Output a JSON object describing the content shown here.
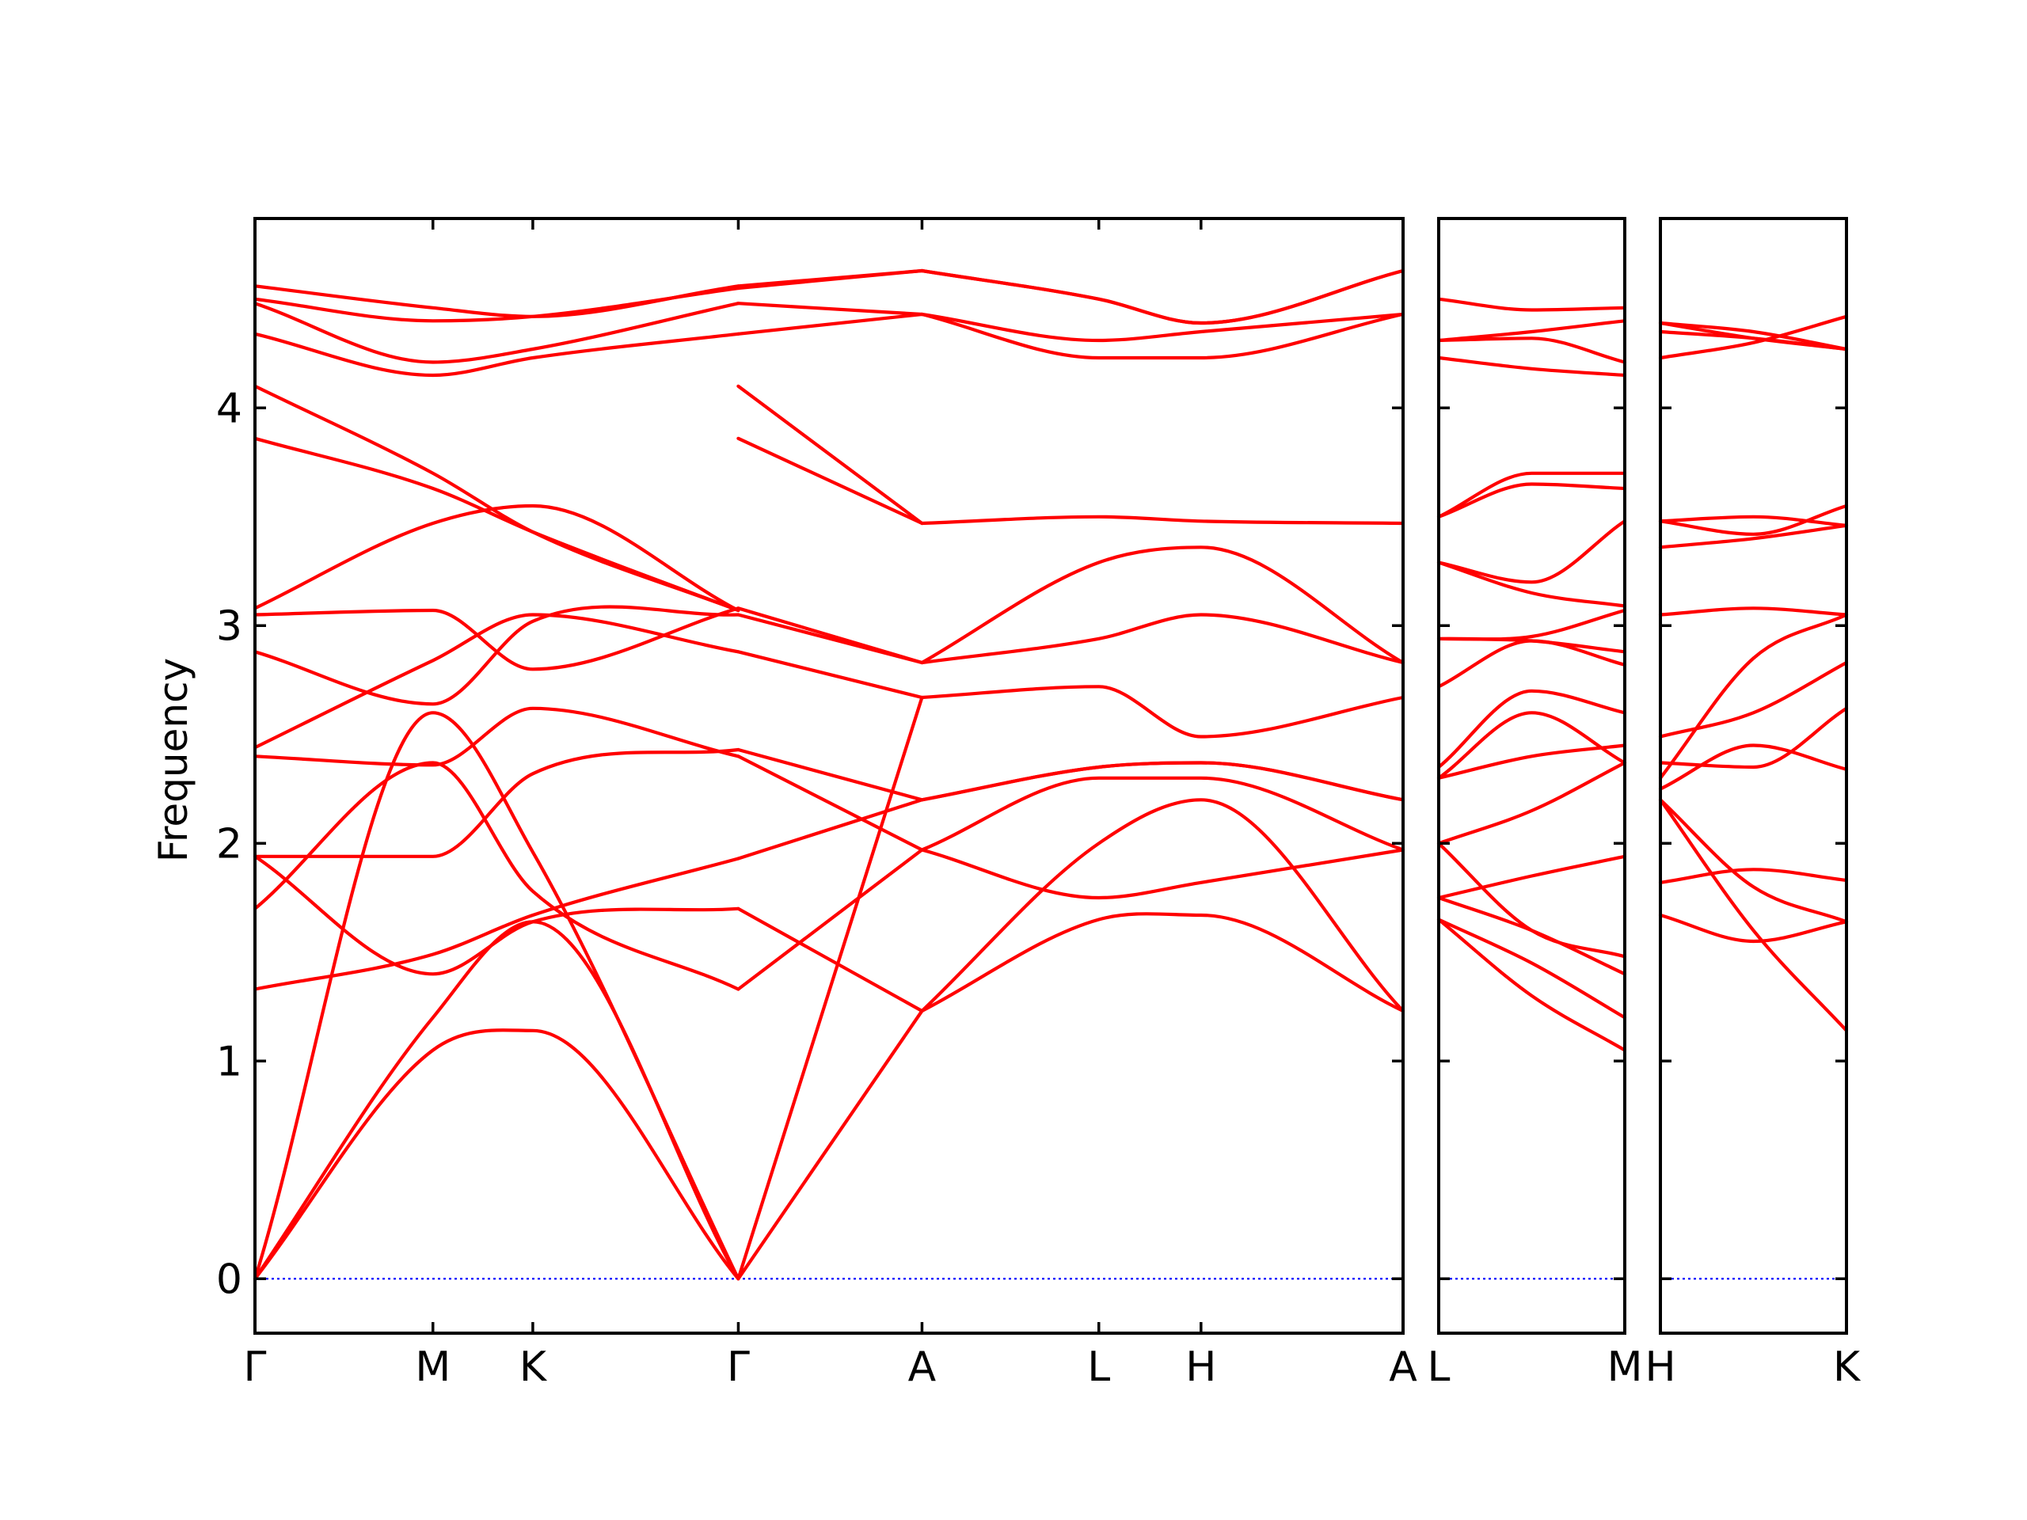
{
  "chart_data": {
    "type": "line",
    "ylabel": "Frequency",
    "xlabel": "",
    "title": "",
    "ylim": [
      -0.25,
      4.87
    ],
    "yticks": [
      0,
      1,
      2,
      3,
      4
    ],
    "grid": false,
    "colors": {
      "bands": "#ff0000",
      "zero_line": "#0000ff",
      "frame": "#000000"
    },
    "panels": [
      {
        "name": "main",
        "labels": [
          "Γ",
          "M",
          "K",
          "Γ",
          "A",
          "L",
          "H",
          "A"
        ],
        "label_x": [
          0,
          0.155,
          0.242,
          0.421,
          0.581,
          0.735,
          0.824,
          1.0
        ],
        "series": [
          {
            "x": [
              0,
              0.155,
              0.242,
              0.421
            ],
            "y": [
              0,
              1.05,
              1.14,
              0
            ]
          },
          {
            "x": [
              0,
              0.155,
              0.242,
              0.421
            ],
            "y": [
              0,
              1.2,
              1.64,
              0
            ]
          },
          {
            "x": [
              0,
              0.155,
              0.242,
              0.421
            ],
            "y": [
              0,
              2.6,
              1.96,
              0
            ]
          },
          {
            "x": [
              0,
              0.155,
              0.242,
              0.421
            ],
            "y": [
              1.33,
              1.49,
              1.67,
              1.93
            ]
          },
          {
            "x": [
              0,
              0.155,
              0.242,
              0.421
            ],
            "y": [
              1.7,
              2.37,
              1.78,
              1.33
            ]
          },
          {
            "x": [
              0,
              0.155,
              0.242,
              0.421
            ],
            "y": [
              1.94,
              1.4,
              1.64,
              1.7
            ]
          },
          {
            "x": [
              0,
              0.155,
              0.242,
              0.421
            ],
            "y": [
              1.94,
              1.94,
              2.32,
              2.43
            ]
          },
          {
            "x": [
              0,
              0.155,
              0.242,
              0.421
            ],
            "y": [
              2.4,
              2.36,
              2.62,
              2.4
            ]
          },
          {
            "x": [
              0,
              0.155,
              0.242,
              0.421
            ],
            "y": [
              2.44,
              2.84,
              3.05,
              2.88
            ]
          },
          {
            "x": [
              0,
              0.155,
              0.242,
              0.421
            ],
            "y": [
              2.88,
              2.64,
              3.02,
              3.05
            ]
          },
          {
            "x": [
              0,
              0.155,
              0.242,
              0.421
            ],
            "y": [
              3.05,
              3.07,
              2.8,
              3.08
            ]
          },
          {
            "x": [
              0,
              0.155,
              0.242,
              0.421
            ],
            "y": [
              3.08,
              3.47,
              3.55,
              3.07
            ]
          },
          {
            "x": [
              0,
              0.155,
              0.242,
              0.421
            ],
            "y": [
              3.86,
              3.63,
              3.43,
              3.07
            ]
          },
          {
            "x": [
              0,
              0.155,
              0.242,
              0.421
            ],
            "y": [
              4.1,
              3.7,
              3.43,
              3.07
            ]
          },
          {
            "x": [
              0,
              0.155,
              0.242,
              0.421
            ],
            "y": [
              4.34,
              4.15,
              4.23,
              4.34
            ]
          },
          {
            "x": [
              0,
              0.155,
              0.242,
              0.421
            ],
            "y": [
              4.48,
              4.21,
              4.27,
              4.48
            ]
          },
          {
            "x": [
              0,
              0.155,
              0.242,
              0.421
            ],
            "y": [
              4.5,
              4.4,
              4.42,
              4.55
            ]
          },
          {
            "x": [
              0,
              0.155,
              0.242,
              0.421
            ],
            "y": [
              4.56,
              4.46,
              4.42,
              4.56
            ]
          },
          {
            "x": [
              0.421,
              0.581
            ],
            "y": [
              0,
              1.23
            ]
          },
          {
            "x": [
              0.421,
              0.581
            ],
            "y": [
              0,
              2.67
            ]
          },
          {
            "x": [
              0.421,
              0.581
            ],
            "y": [
              1.33,
              1.97
            ]
          },
          {
            "x": [
              0.421,
              0.581
            ],
            "y": [
              1.7,
              1.23
            ]
          },
          {
            "x": [
              0.421,
              0.581
            ],
            "y": [
              1.93,
              2.2
            ]
          },
          {
            "x": [
              0.421,
              0.581
            ],
            "y": [
              2.4,
              1.97
            ]
          },
          {
            "x": [
              0.421,
              0.581
            ],
            "y": [
              2.43,
              2.2
            ]
          },
          {
            "x": [
              0.421,
              0.581
            ],
            "y": [
              2.88,
              2.67
            ]
          },
          {
            "x": [
              0.421,
              0.581
            ],
            "y": [
              3.05,
              2.83
            ]
          },
          {
            "x": [
              0.421,
              0.581
            ],
            "y": [
              3.08,
              2.83
            ]
          },
          {
            "x": [
              0.421,
              0.581
            ],
            "y": [
              3.86,
              3.47
            ]
          },
          {
            "x": [
              0.421,
              0.581
            ],
            "y": [
              4.1,
              3.47
            ]
          },
          {
            "x": [
              0.421,
              0.581
            ],
            "y": [
              4.34,
              4.43
            ]
          },
          {
            "x": [
              0.421,
              0.581
            ],
            "y": [
              4.48,
              4.43
            ]
          },
          {
            "x": [
              0.421,
              0.581
            ],
            "y": [
              4.55,
              4.63
            ]
          },
          {
            "x": [
              0.421,
              0.581
            ],
            "y": [
              4.56,
              4.63
            ]
          },
          {
            "x": [
              0.581,
              0.735,
              0.824,
              1.0
            ],
            "y": [
              1.23,
              1.65,
              1.67,
              1.23
            ]
          },
          {
            "x": [
              0.581,
              0.735,
              0.824,
              1.0
            ],
            "y": [
              1.23,
              2.0,
              2.2,
              1.23
            ]
          },
          {
            "x": [
              0.581,
              0.735,
              0.824,
              1.0
            ],
            "y": [
              1.97,
              1.75,
              1.82,
              1.97
            ]
          },
          {
            "x": [
              0.581,
              0.735,
              0.824,
              1.0
            ],
            "y": [
              1.97,
              2.3,
              2.3,
              1.97
            ]
          },
          {
            "x": [
              0.581,
              0.735,
              0.824,
              1.0
            ],
            "y": [
              2.2,
              2.35,
              2.37,
              2.2
            ]
          },
          {
            "x": [
              0.581,
              0.735,
              0.824,
              1.0
            ],
            "y": [
              2.2,
              2.35,
              2.37,
              2.2
            ]
          },
          {
            "x": [
              0.581,
              0.735,
              0.824,
              1.0
            ],
            "y": [
              2.67,
              2.72,
              2.49,
              2.67
            ]
          },
          {
            "x": [
              0.581,
              0.735,
              0.824,
              1.0
            ],
            "y": [
              2.83,
              2.94,
              3.05,
              2.83
            ]
          },
          {
            "x": [
              0.581,
              0.735,
              0.824,
              1.0
            ],
            "y": [
              2.83,
              3.29,
              3.36,
              2.83
            ]
          },
          {
            "x": [
              0.581,
              0.735,
              0.824,
              1.0
            ],
            "y": [
              3.47,
              3.5,
              3.48,
              3.47
            ]
          },
          {
            "x": [
              0.581,
              0.735,
              0.824,
              1.0
            ],
            "y": [
              4.43,
              4.23,
              4.23,
              4.43
            ]
          },
          {
            "x": [
              0.581,
              0.735,
              0.824,
              1.0
            ],
            "y": [
              4.43,
              4.31,
              4.35,
              4.43
            ]
          },
          {
            "x": [
              0.581,
              0.735,
              0.824,
              1.0
            ],
            "y": [
              4.63,
              4.5,
              4.39,
              4.63
            ]
          },
          {
            "x": [
              0.581,
              0.735,
              0.824,
              1.0
            ],
            "y": [
              4.63,
              4.5,
              4.39,
              4.63
            ]
          }
        ]
      },
      {
        "name": "L-M",
        "labels": [
          "L",
          "M"
        ],
        "label_x": [
          0,
          1
        ],
        "series": [
          {
            "x": [
              0,
              0.5,
              1
            ],
            "y": [
              1.65,
              1.3,
              1.05
            ]
          },
          {
            "x": [
              0,
              0.5,
              1
            ],
            "y": [
              1.65,
              1.45,
              1.2
            ]
          },
          {
            "x": [
              0,
              0.5,
              1
            ],
            "y": [
              1.75,
              1.6,
              1.4
            ]
          },
          {
            "x": [
              0,
              0.5,
              1
            ],
            "y": [
              2.0,
              1.6,
              1.48
            ]
          },
          {
            "x": [
              0,
              0.5,
              1
            ],
            "y": [
              1.75,
              1.85,
              1.94
            ]
          },
          {
            "x": [
              0,
              0.5,
              1
            ],
            "y": [
              2.0,
              2.15,
              2.37
            ]
          },
          {
            "x": [
              0,
              0.5,
              1
            ],
            "y": [
              2.3,
              2.4,
              2.45
            ]
          },
          {
            "x": [
              0,
              0.5,
              1
            ],
            "y": [
              2.3,
              2.6,
              2.37
            ]
          },
          {
            "x": [
              0,
              0.5,
              1
            ],
            "y": [
              2.35,
              2.7,
              2.6
            ]
          },
          {
            "x": [
              0,
              0.5,
              1
            ],
            "y": [
              2.72,
              2.93,
              2.82
            ]
          },
          {
            "x": [
              0,
              0.5,
              1
            ],
            "y": [
              2.94,
              2.93,
              2.88
            ]
          },
          {
            "x": [
              0,
              0.5,
              1
            ],
            "y": [
              2.94,
              2.95,
              3.07
            ]
          },
          {
            "x": [
              0,
              0.5,
              1
            ],
            "y": [
              3.29,
              3.15,
              3.09
            ]
          },
          {
            "x": [
              0,
              0.5,
              1
            ],
            "y": [
              3.29,
              3.2,
              3.48
            ]
          },
          {
            "x": [
              0,
              0.5,
              1
            ],
            "y": [
              3.5,
              3.65,
              3.63
            ]
          },
          {
            "x": [
              0,
              0.5,
              1
            ],
            "y": [
              3.5,
              3.7,
              3.7
            ]
          },
          {
            "x": [
              0,
              0.5,
              1
            ],
            "y": [
              4.23,
              4.18,
              4.15
            ]
          },
          {
            "x": [
              0,
              0.5,
              1
            ],
            "y": [
              4.31,
              4.32,
              4.21
            ]
          },
          {
            "x": [
              0,
              0.5,
              1
            ],
            "y": [
              4.31,
              4.35,
              4.4
            ]
          },
          {
            "x": [
              0,
              0.5,
              1
            ],
            "y": [
              4.5,
              4.45,
              4.46
            ]
          }
        ]
      },
      {
        "name": "H-K",
        "labels": [
          "H",
          "K"
        ],
        "label_x": [
          0,
          1
        ],
        "series": [
          {
            "x": [
              0,
              0.5,
              1
            ],
            "y": [
              2.2,
              1.6,
              1.14
            ]
          },
          {
            "x": [
              0,
              0.5,
              1
            ],
            "y": [
              1.67,
              1.55,
              1.64
            ]
          },
          {
            "x": [
              0,
              0.5,
              1
            ],
            "y": [
              1.82,
              1.88,
              1.83
            ]
          },
          {
            "x": [
              0,
              0.5,
              1
            ],
            "y": [
              2.2,
              1.8,
              1.64
            ]
          },
          {
            "x": [
              0,
              0.5,
              1
            ],
            "y": [
              2.25,
              2.45,
              2.34
            ]
          },
          {
            "x": [
              0,
              0.5,
              1
            ],
            "y": [
              2.37,
              2.35,
              2.62
            ]
          },
          {
            "x": [
              0,
              0.5,
              1
            ],
            "y": [
              2.3,
              2.85,
              3.05
            ]
          },
          {
            "x": [
              0,
              0.5,
              1
            ],
            "y": [
              2.49,
              2.6,
              2.83
            ]
          },
          {
            "x": [
              0,
              0.5,
              1
            ],
            "y": [
              3.05,
              3.08,
              3.05
            ]
          },
          {
            "x": [
              0,
              0.5,
              1
            ],
            "y": [
              3.36,
              3.4,
              3.46
            ]
          },
          {
            "x": [
              0,
              0.5,
              1
            ],
            "y": [
              3.48,
              3.42,
              3.55
            ]
          },
          {
            "x": [
              0,
              0.5,
              1
            ],
            "y": [
              3.48,
              3.5,
              3.46
            ]
          },
          {
            "x": [
              0,
              0.5,
              1
            ],
            "y": [
              4.23,
              4.3,
              4.42
            ]
          },
          {
            "x": [
              0,
              0.5,
              1
            ],
            "y": [
              4.35,
              4.32,
              4.27
            ]
          },
          {
            "x": [
              0,
              0.5,
              1
            ],
            "y": [
              4.39,
              4.32,
              4.27
            ]
          },
          {
            "x": [
              0,
              0.5,
              1
            ],
            "y": [
              4.39,
              4.35,
              4.27
            ]
          }
        ]
      }
    ]
  }
}
